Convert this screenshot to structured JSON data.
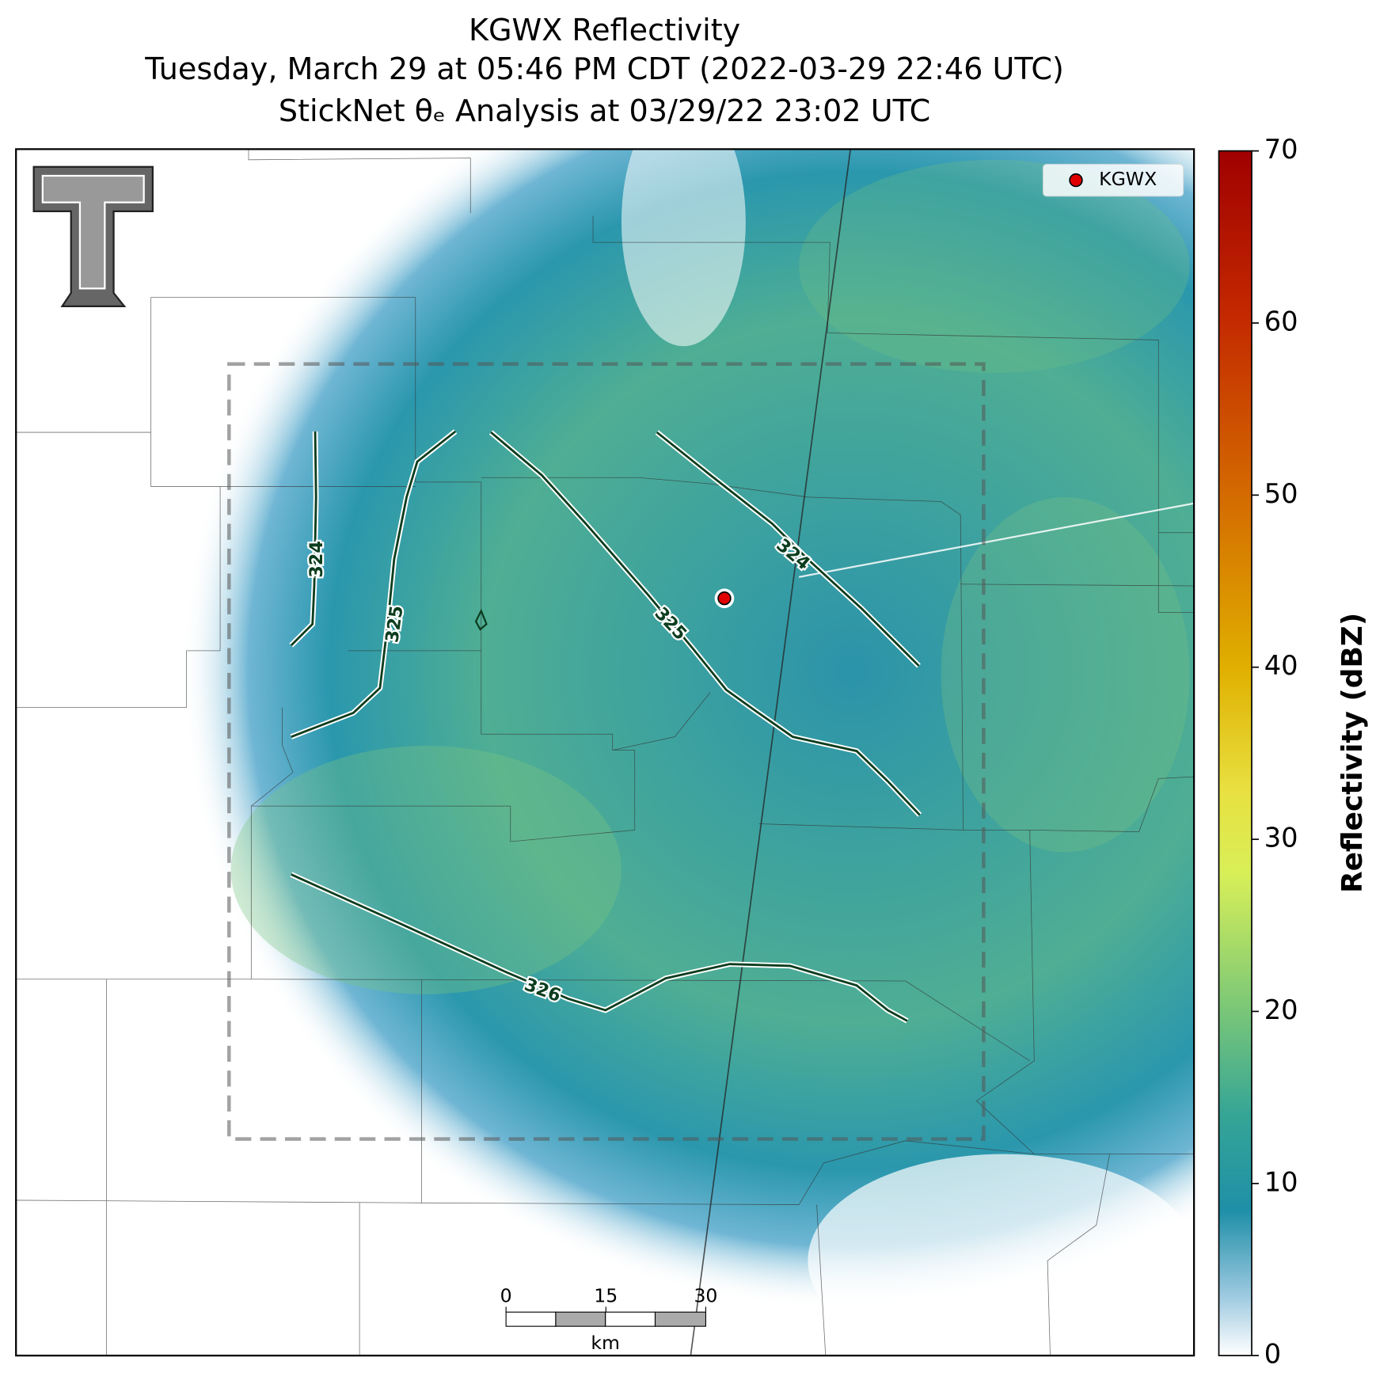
{
  "title": {
    "lines": [
      "KGWX Reflectivity",
      "Tuesday, March 29 at 05:46 PM CDT (2022-03-29 22:46 UTC)",
      "StickNet θₑ Analysis at 03/29/22 23:02 UTC"
    ]
  },
  "map": {
    "legend": "KGWX",
    "contour_labels": [
      "324",
      "325",
      "325",
      "324",
      "326"
    ]
  },
  "scale_bar": {
    "ticks": [
      0,
      15,
      30
    ],
    "unit": "km"
  },
  "colorbar": {
    "label": "Reflectivity (dBZ)",
    "lim": [
      0,
      70
    ],
    "ticks": [
      0,
      10,
      20,
      30,
      40,
      50,
      60,
      70
    ]
  }
}
